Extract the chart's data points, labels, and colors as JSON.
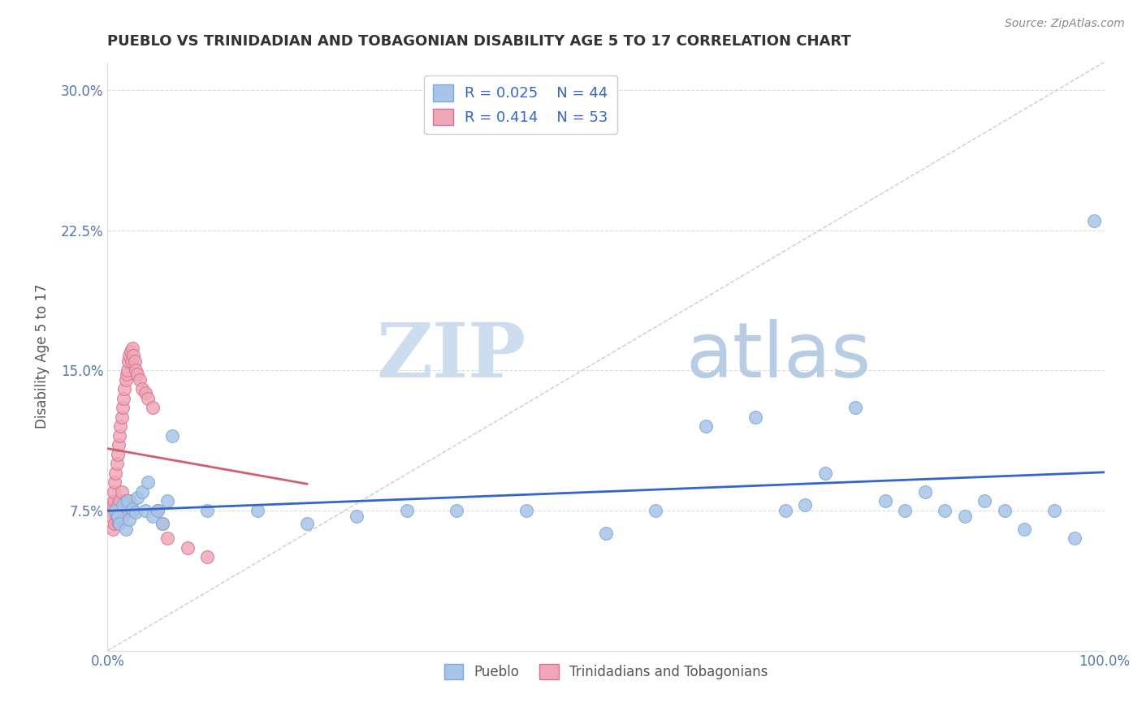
{
  "title": "PUEBLO VS TRINIDADIAN AND TOBAGONIAN DISABILITY AGE 5 TO 17 CORRELATION CHART",
  "source": "Source: ZipAtlas.com",
  "ylabel": "Disability Age 5 to 17",
  "xlabel": "",
  "xlim": [
    0.0,
    1.0
  ],
  "ylim": [
    0.0,
    0.315
  ],
  "xticks": [
    0.0,
    0.25,
    0.5,
    0.75,
    1.0
  ],
  "xtick_labels": [
    "0.0%",
    "",
    "",
    "",
    "100.0%"
  ],
  "yticks": [
    0.075,
    0.15,
    0.225,
    0.3
  ],
  "ytick_labels": [
    "7.5%",
    "15.0%",
    "22.5%",
    "30.0%"
  ],
  "pueblo_color": "#a8c4e8",
  "pueblo_edge": "#7aaad4",
  "trinidadian_color": "#f0a8b8",
  "trinidadian_edge": "#d87090",
  "R_pueblo": 0.025,
  "N_pueblo": 44,
  "R_trinidadian": 0.414,
  "N_trinidadian": 53,
  "pueblo_x": [
    0.008,
    0.01,
    0.012,
    0.015,
    0.018,
    0.02,
    0.022,
    0.025,
    0.028,
    0.03,
    0.035,
    0.038,
    0.04,
    0.045,
    0.05,
    0.055,
    0.06,
    0.065,
    0.1,
    0.15,
    0.2,
    0.25,
    0.3,
    0.35,
    0.42,
    0.5,
    0.55,
    0.6,
    0.65,
    0.68,
    0.7,
    0.72,
    0.75,
    0.78,
    0.8,
    0.82,
    0.84,
    0.86,
    0.88,
    0.9,
    0.92,
    0.95,
    0.97,
    0.99
  ],
  "pueblo_y": [
    0.075,
    0.072,
    0.068,
    0.078,
    0.065,
    0.08,
    0.07,
    0.076,
    0.074,
    0.082,
    0.085,
    0.075,
    0.09,
    0.072,
    0.075,
    0.068,
    0.08,
    0.115,
    0.075,
    0.075,
    0.068,
    0.072,
    0.075,
    0.075,
    0.075,
    0.063,
    0.075,
    0.12,
    0.125,
    0.075,
    0.078,
    0.095,
    0.13,
    0.08,
    0.075,
    0.085,
    0.075,
    0.072,
    0.08,
    0.075,
    0.065,
    0.075,
    0.06,
    0.23
  ],
  "trinidadian_x": [
    0.003,
    0.004,
    0.005,
    0.005,
    0.006,
    0.006,
    0.007,
    0.007,
    0.008,
    0.008,
    0.009,
    0.009,
    0.01,
    0.01,
    0.011,
    0.011,
    0.012,
    0.012,
    0.013,
    0.013,
    0.014,
    0.014,
    0.015,
    0.015,
    0.016,
    0.016,
    0.017,
    0.018,
    0.018,
    0.019,
    0.02,
    0.02,
    0.021,
    0.022,
    0.022,
    0.023,
    0.024,
    0.025,
    0.025,
    0.026,
    0.027,
    0.028,
    0.03,
    0.032,
    0.035,
    0.038,
    0.04,
    0.045,
    0.05,
    0.055,
    0.06,
    0.08,
    0.1
  ],
  "trinidadian_y": [
    0.075,
    0.072,
    0.078,
    0.065,
    0.08,
    0.085,
    0.09,
    0.068,
    0.095,
    0.075,
    0.1,
    0.072,
    0.105,
    0.078,
    0.11,
    0.068,
    0.115,
    0.08,
    0.12,
    0.075,
    0.125,
    0.085,
    0.13,
    0.072,
    0.135,
    0.078,
    0.14,
    0.145,
    0.08,
    0.148,
    0.15,
    0.075,
    0.155,
    0.158,
    0.08,
    0.16,
    0.155,
    0.162,
    0.075,
    0.158,
    0.155,
    0.15,
    0.148,
    0.145,
    0.14,
    0.138,
    0.135,
    0.13,
    0.075,
    0.068,
    0.06,
    0.055,
    0.05
  ],
  "watermark_zip": "ZIP",
  "watermark_atlas": "atlas",
  "watermark_color_zip": "#c8d8ef",
  "watermark_color_atlas": "#b8c8df",
  "title_color": "#333333",
  "axis_label_color": "#555555",
  "tick_color": "#5577aa",
  "legend_text_color": "#3366cc",
  "grid_color": "#dddddd",
  "trend_blue_color": "#3366cc",
  "trend_pink_color": "#d06070",
  "trend_diag_color": "#cccccc",
  "trend_diag_style": "--"
}
